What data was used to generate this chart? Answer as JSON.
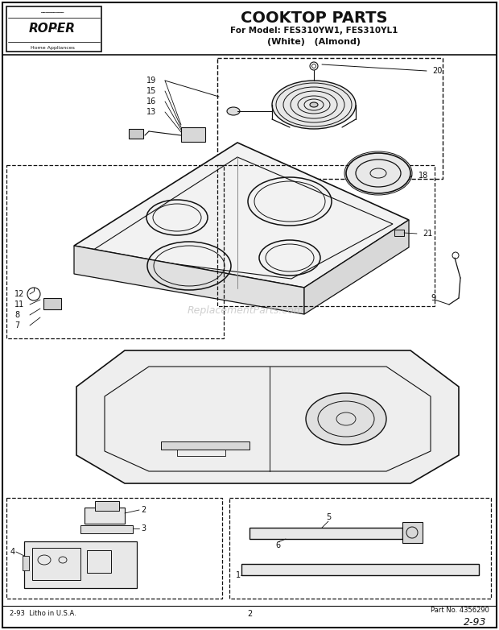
{
  "title_main": "COOKTOP PARTS",
  "title_sub1": "For Model: FES310YW1, FES310YL1",
  "title_sub2": "(White)   (Almond)",
  "brand_line1": "ROPER",
  "brand_line2": "Home Appliances",
  "footer_left": "2-93  Litho in U.S.A.",
  "footer_center": "2",
  "footer_right": "Part No. 4356290",
  "footer_handwritten": "2-93",
  "bg_color": "#ffffff",
  "lc": "#111111",
  "watermark": "ReplacementParts.com"
}
